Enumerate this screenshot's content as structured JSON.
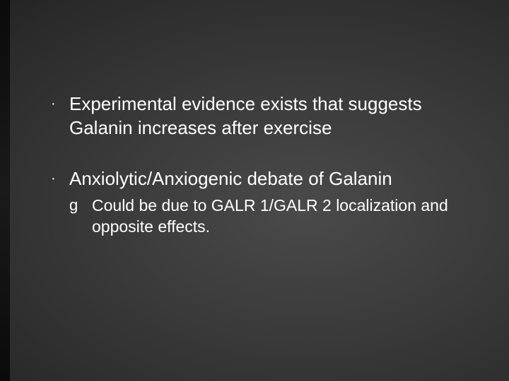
{
  "slide": {
    "background_inner": "#4a4a4a",
    "background_outer": "#000000",
    "text_color": "#ffffff",
    "side_accent_color": "#0a0a0a",
    "body_fontsize": 26,
    "sub_fontsize": 23,
    "bullet_glyph": "·",
    "sub_bullet_glyph": "g",
    "bullets": [
      {
        "text": "Experimental evidence exists that suggests Galanin increases after exercise",
        "children": []
      },
      {
        "text": "Anxiolytic/Anxiogenic debate of Galanin",
        "children": [
          {
            "text": "Could be due to GALR 1/GALR 2 localization and opposite effects."
          }
        ]
      }
    ]
  }
}
